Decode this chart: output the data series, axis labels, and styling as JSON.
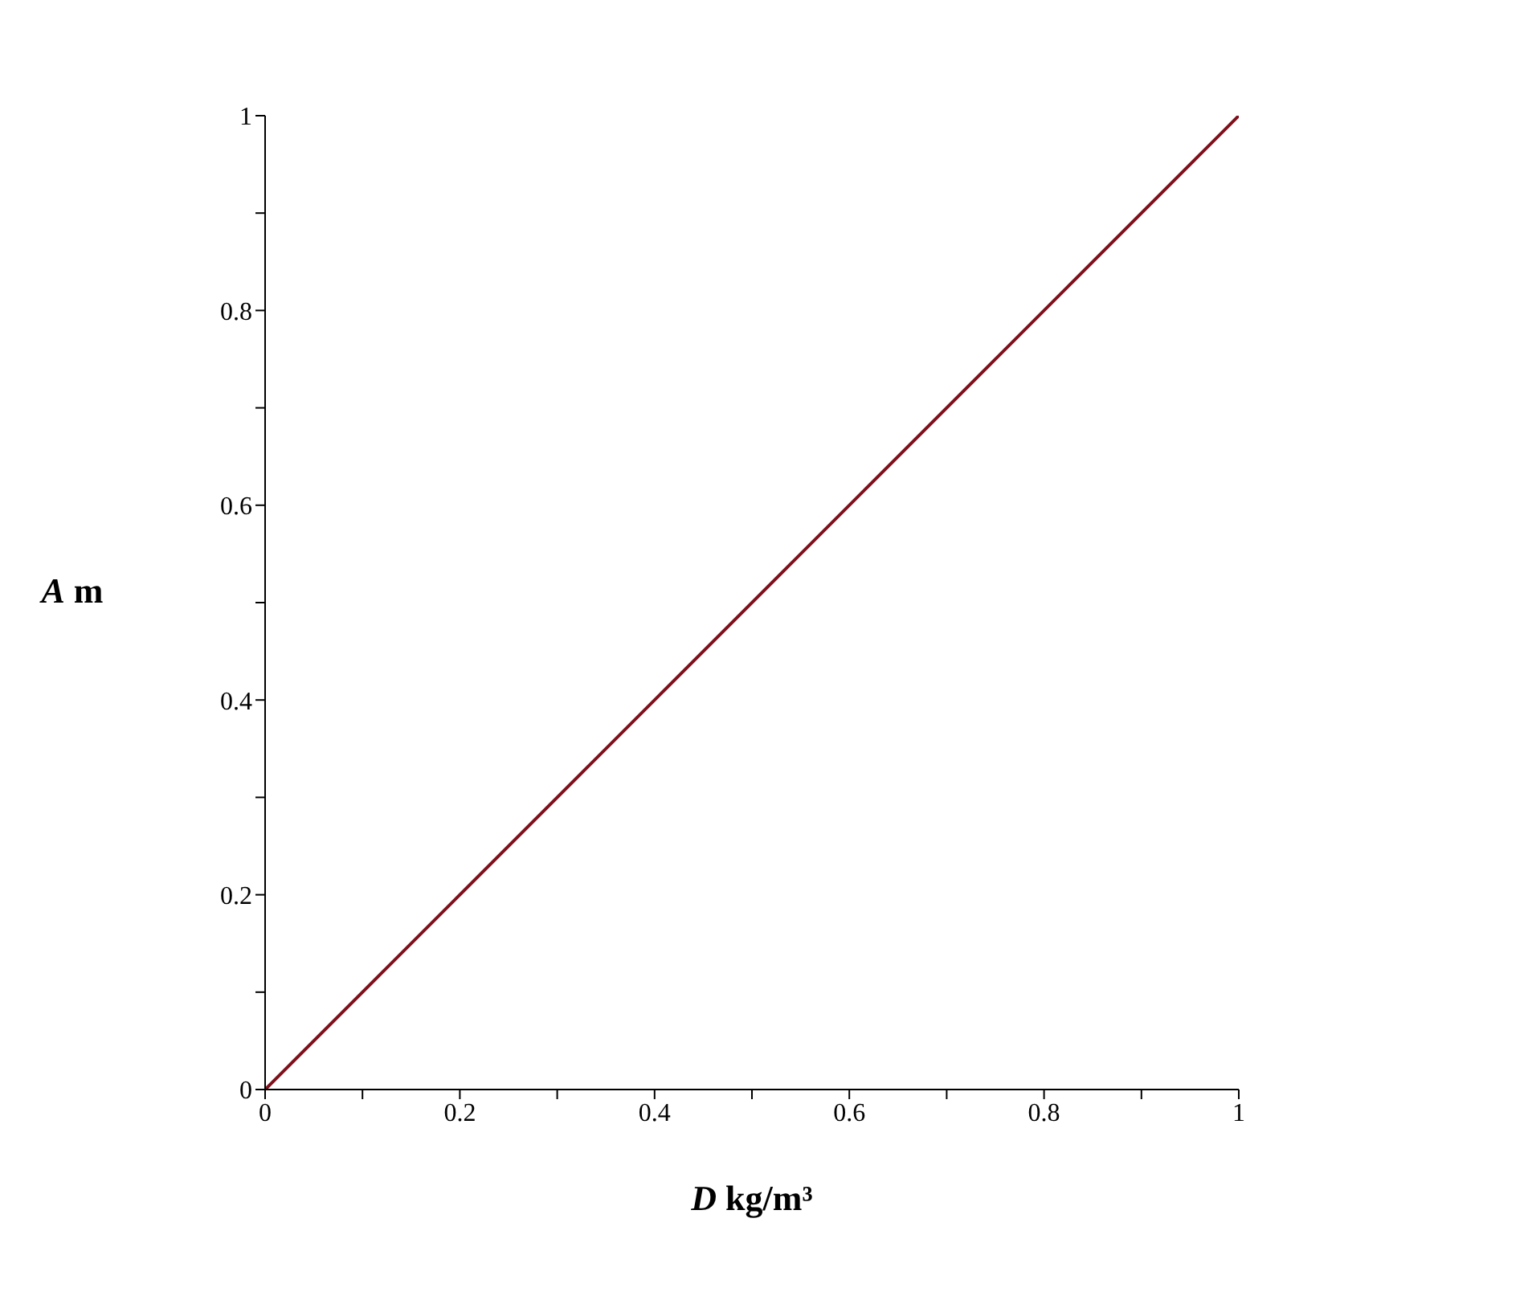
{
  "chart_data": {
    "type": "line",
    "xlabel": "D kg/m³",
    "ylabel": "A m",
    "x": [
      0,
      1
    ],
    "series": [
      {
        "color": "#7f0f1a",
        "values": [
          0,
          1
        ]
      }
    ],
    "xlim": [
      0,
      1
    ],
    "ylim": [
      0,
      1
    ],
    "xticks": [
      0,
      {
        "value": 0.1,
        "label": null
      },
      0.2,
      {
        "value": 0.3,
        "label": null
      },
      0.4,
      {
        "value": 0.5,
        "label": null
      },
      0.6,
      {
        "value": 0.7,
        "label": null
      },
      0.8,
      {
        "value": 0.9,
        "label": null
      },
      1
    ],
    "yticks": [
      0,
      {
        "value": 0.1,
        "label": null
      },
      0.2,
      {
        "value": 0.3,
        "label": null
      },
      0.4,
      {
        "value": 0.5,
        "label": null
      },
      0.6,
      {
        "value": 0.7,
        "label": null
      },
      0.8,
      {
        "value": 0.9,
        "label": null
      },
      1
    ],
    "grid": false,
    "legend": false,
    "marker": "none",
    "line_style": "solid"
  }
}
